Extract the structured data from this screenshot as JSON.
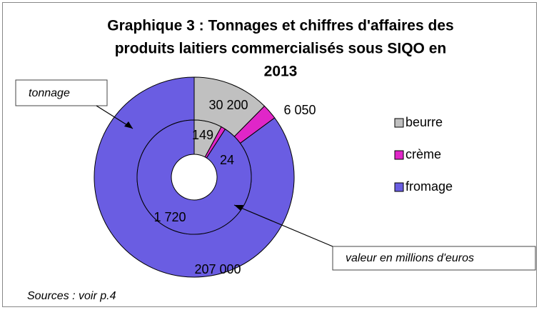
{
  "chart_data": {
    "type": "doughnut",
    "title_lines": [
      "Graphique 3 : Tonnages et chiffres d'affaires des",
      "produits laitiers commercialisés sous SIQO en",
      "2013"
    ],
    "categories": [
      "beurre",
      "crème",
      "fromage"
    ],
    "colors": [
      "#c0c0c0",
      "#e026c8",
      "#6a5de2"
    ],
    "series": [
      {
        "name": "tonnage",
        "values": [
          30200,
          6050,
          207000
        ],
        "value_labels": [
          "30 200",
          "6 050",
          "207 000"
        ]
      },
      {
        "name": "valeur en millions d'euros",
        "values": [
          149,
          24,
          1720
        ],
        "value_labels": [
          "149",
          "24",
          "1 720"
        ]
      }
    ],
    "source": "Sources : voir p.4",
    "legend": "right"
  }
}
